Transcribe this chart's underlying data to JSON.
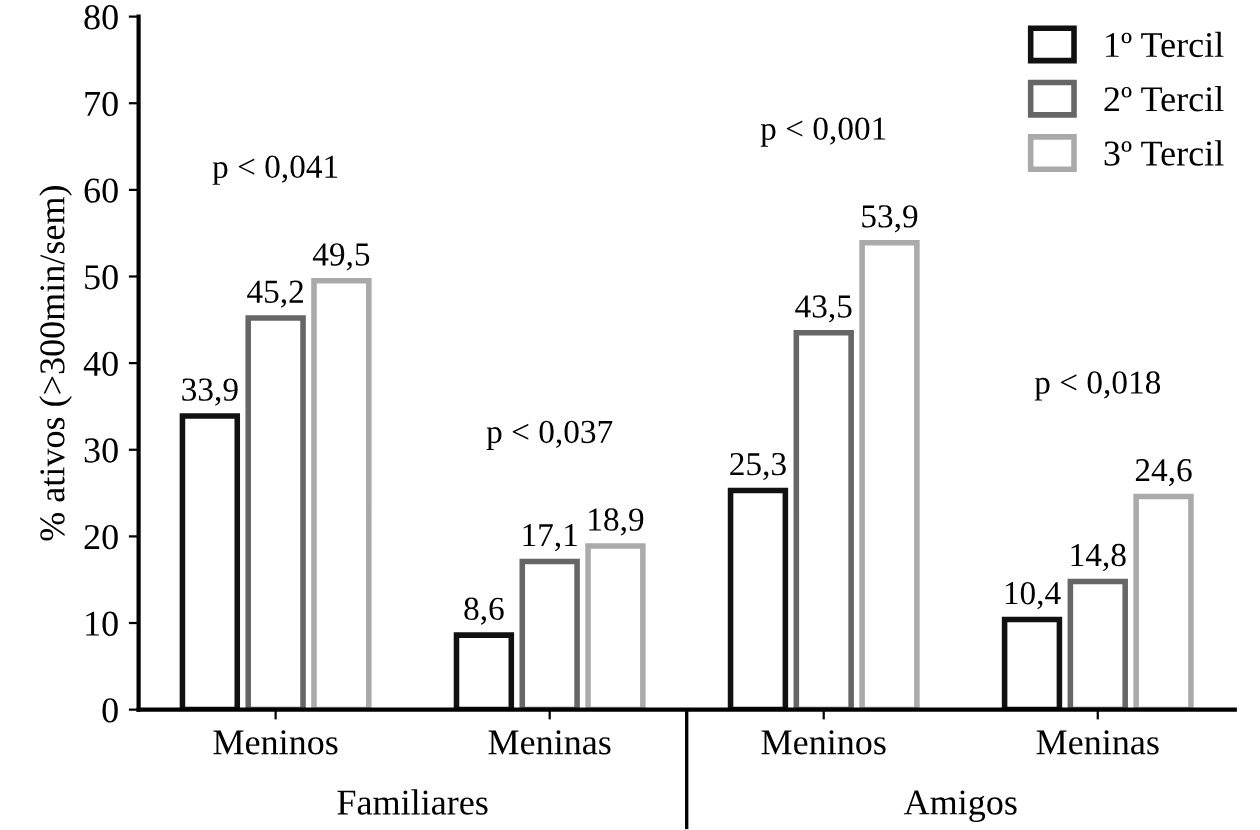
{
  "chart_data": {
    "type": "bar",
    "ylabel": "% ativos (>300min/sem)",
    "categories": [
      "Meninos",
      "Meninas",
      "Meninos",
      "Meninas"
    ],
    "series": [
      {
        "name": "1º Tercil",
        "color": "#111111",
        "values": [
          33.9,
          8.6,
          25.3,
          10.4
        ],
        "value_labels": [
          "33,9",
          "8,6",
          "25,3",
          "10,4"
        ]
      },
      {
        "name": "2º Tercil",
        "color": "#666666",
        "values": [
          45.2,
          17.1,
          43.5,
          14.8
        ],
        "value_labels": [
          "45,2",
          "17,1",
          "43,5",
          "14,8"
        ]
      },
      {
        "name": "3º Tercil",
        "color": "#aaaaaa",
        "values": [
          49.5,
          18.9,
          53.9,
          24.6
        ],
        "value_labels": [
          "49,5",
          "18,9",
          "53,9",
          "24,6"
        ]
      }
    ],
    "ylim": [
      0,
      80
    ],
    "yticks": [
      0,
      10,
      20,
      30,
      40,
      50,
      60,
      70,
      80
    ],
    "grid": false,
    "legend": "top right",
    "annotations": [
      "p < 0,041",
      "p < 0,037",
      "p < 0,001",
      "p < 0,018",
      "Familiares",
      "Amigos"
    ]
  }
}
